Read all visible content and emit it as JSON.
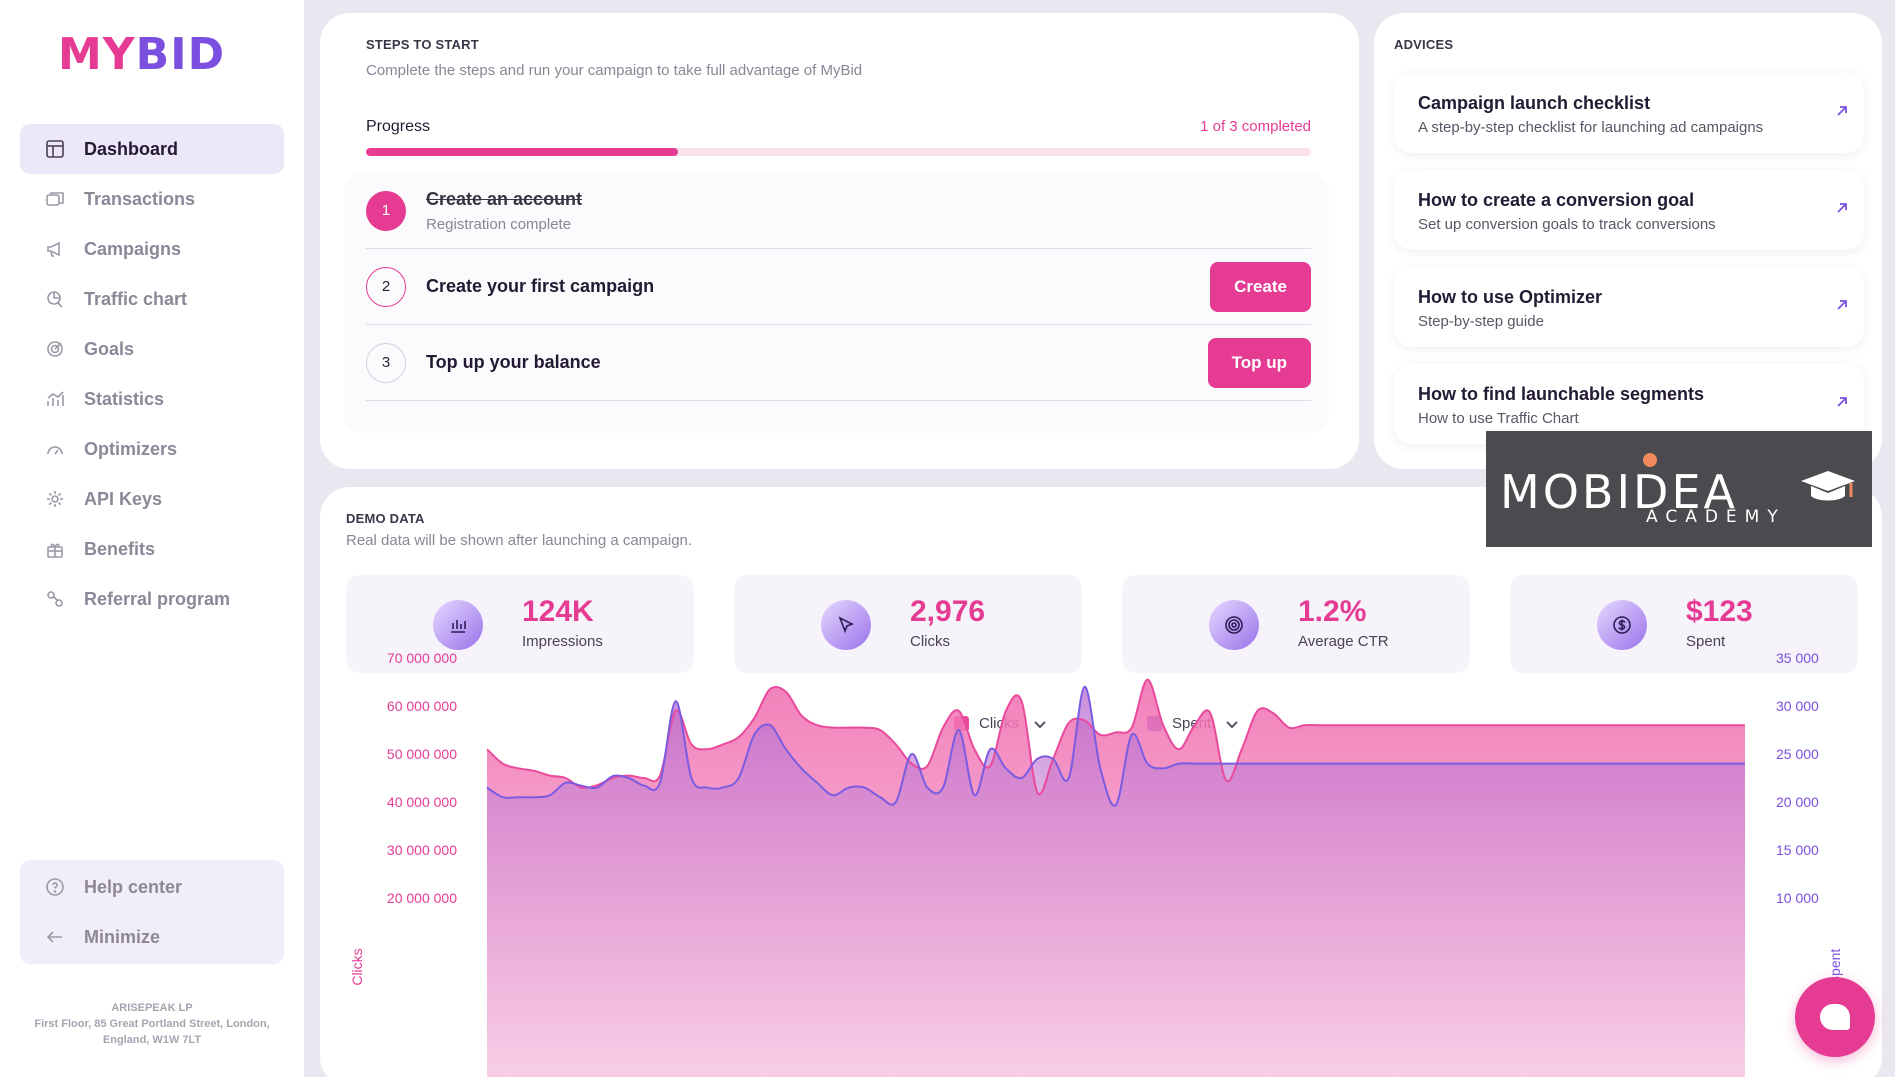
{
  "brand": {
    "name_part1": "MY",
    "name_part2": "BID",
    "color_primary": "#e53b93",
    "color_secondary": "#7b4fe0"
  },
  "sidebar": {
    "items": [
      {
        "label": "Dashboard",
        "icon": "dashboard-icon",
        "active": true
      },
      {
        "label": "Transactions",
        "icon": "transactions-icon"
      },
      {
        "label": "Campaigns",
        "icon": "megaphone-icon"
      },
      {
        "label": "Traffic chart",
        "icon": "traffic-chart-icon"
      },
      {
        "label": "Goals",
        "icon": "target-icon"
      },
      {
        "label": "Statistics",
        "icon": "statistics-icon"
      },
      {
        "label": "Optimizers",
        "icon": "gauge-icon"
      },
      {
        "label": "API Keys",
        "icon": "gear-icon"
      },
      {
        "label": "Benefits",
        "icon": "gift-icon"
      },
      {
        "label": "Referral program",
        "icon": "referral-icon"
      }
    ],
    "help_center": "Help center",
    "minimize": "Minimize",
    "company_name": "ARISEPEAK LP",
    "company_address": "First Floor, 85 Great Portland Street, London, England, W1W 7LT"
  },
  "steps": {
    "title": "STEPS TO START",
    "subtitle": "Complete the steps and run your campaign to take full advantage of MyBid",
    "progress_label": "Progress",
    "progress_count": "1 of 3 completed",
    "progress_value": 0.33,
    "items": [
      {
        "num": "1",
        "title": "Create an account",
        "desc": "Registration complete",
        "done": true
      },
      {
        "num": "2",
        "title": "Create your first campaign",
        "button": "Create"
      },
      {
        "num": "3",
        "title": "Top up your balance",
        "button": "Top up"
      }
    ]
  },
  "advices": {
    "title": "ADVICES",
    "items": [
      {
        "title": "Campaign launch checklist",
        "desc": "A step-by-step checklist for launching ad campaigns"
      },
      {
        "title": "How to create a conversion goal",
        "desc": "Set up conversion goals to track conversions"
      },
      {
        "title": "How to use Optimizer",
        "desc": "Step-by-step guide"
      },
      {
        "title": "How to find launchable segments",
        "desc": "How to use Traffic Chart"
      }
    ]
  },
  "watermark": {
    "main": "MOBIDEA",
    "sub": "ACADEMY"
  },
  "demo": {
    "title": "DEMO DATA",
    "subtitle": "Real data will be shown after launching a campaign.",
    "kpis": [
      {
        "value": "124K",
        "label": "Impressions",
        "icon": "bar-chart-icon"
      },
      {
        "value": "2,976",
        "label": "Clicks",
        "icon": "cursor-icon"
      },
      {
        "value": "1.2%",
        "label": "Average CTR",
        "icon": "target-icon"
      },
      {
        "value": "$123",
        "label": "Spent",
        "icon": "dollar-icon"
      }
    ],
    "legend": [
      {
        "label": "Clicks",
        "color": "#e94a9b"
      },
      {
        "label": "Spent",
        "color": "#7b5ce0"
      }
    ],
    "left_axis_title": "Clicks",
    "right_axis_title": "Spent",
    "left_ticks": [
      "70 000 000",
      "60 000 000",
      "50 000 000",
      "40 000 000",
      "30 000 000",
      "20 000 000"
    ],
    "right_ticks": [
      "35 000",
      "30 000",
      "25 000",
      "20 000",
      "15 000",
      "10 000"
    ]
  },
  "chart_data": {
    "type": "area",
    "x": [
      0,
      1,
      2,
      3,
      4,
      5,
      6,
      7,
      8,
      9,
      10,
      11,
      12,
      13,
      14,
      15,
      16,
      17,
      18,
      19,
      20,
      21,
      22,
      23,
      24,
      25,
      26,
      27,
      28,
      29,
      30,
      31,
      32,
      33,
      34,
      35,
      36,
      37,
      38,
      39,
      40,
      41,
      42,
      43,
      44,
      45,
      46,
      47,
      48,
      49,
      50,
      51,
      52,
      53,
      54,
      55,
      56,
      57,
      58,
      59,
      60,
      61,
      62,
      63,
      64,
      65,
      66,
      67,
      68,
      69,
      70,
      71,
      72,
      73,
      74,
      75,
      76,
      77,
      78,
      79,
      80
    ],
    "series": [
      {
        "name": "Clicks",
        "axis": "left",
        "values": [
          51000000,
          48000000,
          47000000,
          46500000,
          45500000,
          45000000,
          43000000,
          43500000,
          45000000,
          45500000,
          45000000,
          45500000,
          59000000,
          52000000,
          51000000,
          52000000,
          53500000,
          57500000,
          63500000,
          63000000,
          58000000,
          56000000,
          55500000,
          55500000,
          55500000,
          55000000,
          52000000,
          48000000,
          47500000,
          55500000,
          59000000,
          51000000,
          47500000,
          59000000,
          61000000,
          42000000,
          49000000,
          56500000,
          57000000,
          54000000,
          54500000,
          55500000,
          65500000,
          56000000,
          51000000,
          56000000,
          58500000,
          44500000,
          51000000,
          59000000,
          58500000,
          55500000,
          56000000,
          56000000,
          56000000,
          56000000,
          56000000,
          56000000,
          56000000,
          56000000,
          56000000,
          56000000,
          56000000,
          56000000,
          56000000,
          56000000,
          56000000,
          56000000,
          56000000,
          56000000,
          56000000,
          56000000,
          56000000,
          56000000,
          56000000,
          56000000,
          56000000,
          56000000,
          56000000,
          56000000,
          56000000
        ]
      },
      {
        "name": "Spent",
        "axis": "right",
        "values": [
          21500,
          20500,
          20500,
          20500,
          20700,
          22000,
          21700,
          21500,
          22700,
          22500,
          21700,
          22000,
          30500,
          22500,
          21500,
          21500,
          22500,
          27000,
          28000,
          25500,
          23500,
          22000,
          20700,
          21500,
          21500,
          20500,
          20000,
          25000,
          21500,
          21500,
          27500,
          20700,
          25500,
          23500,
          22500,
          24500,
          24500,
          22500,
          32000,
          23500,
          19700,
          27000,
          24000,
          23500,
          24000,
          24000,
          24000,
          24000,
          24000,
          24000,
          24000,
          24000,
          24000,
          24000,
          24000,
          24000,
          24000,
          24000,
          24000,
          24000,
          24000,
          24000,
          24000,
          24000,
          24000,
          24000,
          24000,
          24000,
          24000,
          24000,
          24000,
          24000,
          24000,
          24000,
          24000,
          24000,
          24000,
          24000,
          24000,
          24000,
          24000
        ]
      }
    ],
    "ylim_left": [
      0,
      70000000
    ],
    "ylim_right": [
      0,
      35000
    ],
    "ylabel_left": "Clicks",
    "ylabel_right": "Spent"
  }
}
